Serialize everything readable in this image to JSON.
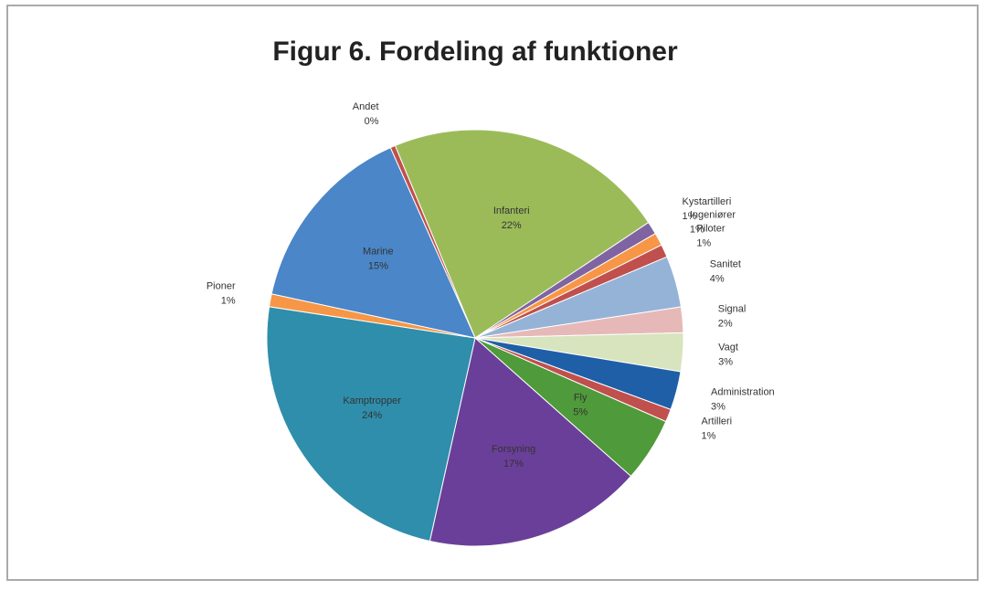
{
  "chart_data": {
    "type": "pie",
    "title": "Figur 6. Fordeling af funktioner",
    "categories": [
      "Andet",
      "Infanteri",
      "Kystartilleri",
      "Ingeniører",
      "Piloter",
      "Sanitet",
      "Signal",
      "Vagt",
      "Administration",
      "Artilleri",
      "Fly",
      "Forsyning",
      "Kamptropper",
      "Pioner",
      "Marine"
    ],
    "values": [
      0.4,
      22,
      1,
      1,
      1,
      4,
      2,
      3,
      3,
      1,
      5,
      17,
      24,
      1,
      15
    ],
    "value_labels": [
      "0%",
      "22%",
      "1%",
      "1%",
      "1%",
      "4%",
      "2%",
      "3%",
      "3%",
      "1%",
      "5%",
      "17%",
      "24%",
      "1%",
      "15%"
    ],
    "colors": [
      "#c0504d",
      "#9bbb59",
      "#8064a2",
      "#f79646",
      "#c0504d",
      "#95b3d7",
      "#e6b9b8",
      "#d7e4bd",
      "#1f5fa8",
      "#c0504d",
      "#4f9a3a",
      "#6a3f99",
      "#2f8eab",
      "#f79646",
      "#4a86c8"
    ]
  }
}
